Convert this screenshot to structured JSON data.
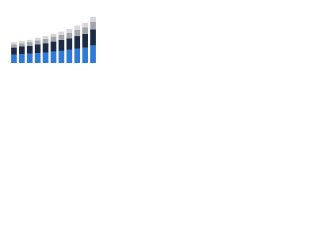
{
  "chart_data": {
    "type": "stacked-bar",
    "categories": [
      null,
      null,
      null,
      null,
      null,
      null,
      null,
      null,
      null,
      null,
      null
    ],
    "series": [
      {
        "color": "#2f7ad6",
        "values": [
          15,
          16,
          17,
          18,
          19,
          21,
          22,
          24,
          26,
          28,
          32
        ]
      },
      {
        "color": "#1b2a47",
        "values": [
          13,
          14,
          14,
          16,
          17,
          18,
          20,
          21,
          23,
          25,
          29
        ]
      },
      {
        "color": "#a2a5aa",
        "values": [
          6,
          6,
          7,
          7,
          8,
          9,
          9,
          10,
          11,
          12,
          14
        ]
      },
      {
        "color": "#d5d7da",
        "values": [
          4,
          4,
          4,
          5,
          5,
          5,
          6,
          7,
          8,
          8,
          9
        ]
      }
    ],
    "ylim": [
      0,
      100
    ]
  }
}
